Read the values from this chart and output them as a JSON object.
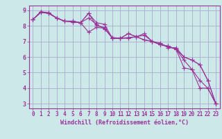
{
  "xlabel": "Windchill (Refroidissement éolien,°C)",
  "bg_color": "#cce8e8",
  "grid_color": "#aaaacc",
  "line_color": "#993399",
  "xlim": [
    -0.5,
    23.5
  ],
  "ylim": [
    2.7,
    9.3
  ],
  "yticks": [
    3,
    4,
    5,
    6,
    7,
    8,
    9
  ],
  "xticks": [
    0,
    1,
    2,
    3,
    4,
    5,
    6,
    7,
    8,
    9,
    10,
    11,
    12,
    13,
    14,
    15,
    16,
    17,
    18,
    19,
    20,
    21,
    22,
    23
  ],
  "series": [
    [
      8.4,
      8.9,
      8.8,
      8.5,
      8.3,
      8.3,
      8.2,
      8.8,
      8.2,
      8.1,
      7.2,
      7.2,
      7.5,
      7.3,
      7.1,
      7.0,
      6.8,
      6.7,
      6.5,
      5.3,
      5.2,
      4.0,
      4.0,
      3.0
    ],
    [
      8.4,
      8.9,
      8.85,
      8.5,
      8.3,
      8.25,
      8.2,
      7.6,
      7.9,
      7.85,
      7.2,
      7.2,
      7.25,
      7.3,
      7.4,
      7.0,
      6.9,
      6.6,
      6.6,
      6.0,
      5.8,
      5.5,
      4.5,
      3.0
    ],
    [
      8.4,
      8.85,
      8.8,
      8.5,
      8.3,
      8.25,
      8.2,
      8.5,
      8.1,
      7.8,
      7.25,
      7.2,
      7.2,
      7.3,
      7.5,
      7.0,
      6.8,
      6.65,
      6.5,
      6.0,
      5.8,
      5.5,
      4.5,
      3.0
    ],
    [
      8.4,
      8.9,
      8.8,
      8.5,
      8.3,
      8.3,
      8.2,
      8.8,
      8.0,
      7.9,
      7.2,
      7.2,
      7.5,
      7.3,
      7.1,
      7.0,
      6.8,
      6.7,
      6.5,
      5.8,
      5.2,
      4.5,
      4.0,
      3.0
    ]
  ]
}
